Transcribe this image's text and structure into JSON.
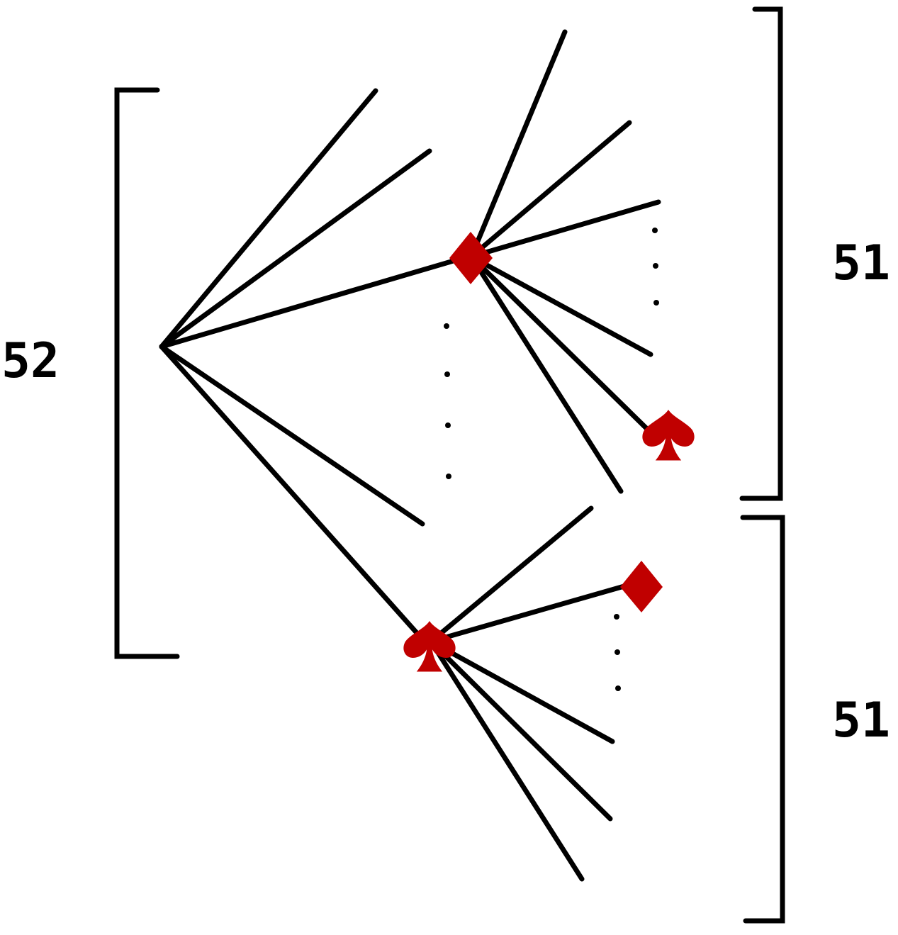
{
  "labels": {
    "first_draw_count": "52",
    "second_draw_count_upper": "51",
    "second_draw_count_lower": "51"
  },
  "symbols": {
    "upper_node": "diamond-icon",
    "upper_leaf": "spade-icon",
    "lower_node": "spade-icon",
    "lower_leaf": "diamond-icon"
  },
  "colors": {
    "lines": "#000000",
    "suits": "#c00000"
  }
}
